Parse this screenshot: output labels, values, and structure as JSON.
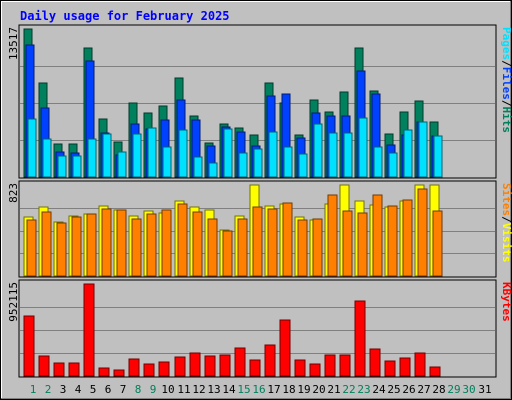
{
  "chart_data": {
    "type": "bar",
    "title": "Daily usage for February 2025",
    "categories": [
      "1",
      "2",
      "3",
      "4",
      "5",
      "6",
      "7",
      "8",
      "9",
      "10",
      "11",
      "12",
      "13",
      "14",
      "15",
      "16",
      "17",
      "18",
      "19",
      "20",
      "21",
      "22",
      "23",
      "24",
      "25",
      "26",
      "27",
      "28",
      "29",
      "30",
      "31"
    ],
    "weekend_days": [
      "1",
      "2",
      "8",
      "9",
      "15",
      "16",
      "22",
      "23",
      "29",
      "30"
    ],
    "colors": {
      "title": "#0000ff",
      "hits": "#00805c",
      "files": "#0040ff",
      "pages": "#00e0ff",
      "visits": "#ffff00",
      "sites": "#ff8000",
      "kbytes": "#ff0000",
      "weekday_label": "#000000",
      "weekend_label": "#00805c"
    },
    "panels": [
      {
        "id": "top",
        "ymax_label": "13517",
        "ymax": 13517,
        "legend": [
          "Pages",
          "Files",
          "Hits"
        ],
        "series": [
          {
            "name": "Hits",
            "values": [
              13500,
              8600,
              3000,
              3000,
              11800,
              5300,
              3200,
              6800,
              5800,
              6500,
              9000,
              5600,
              3100,
              4800,
              4500,
              3800,
              8600,
              6800,
              3800,
              7000,
              5900,
              7800,
              11800,
              7900,
              3900,
              5900,
              6900,
              5000,
              0,
              0,
              0
            ]
          },
          {
            "name": "Files",
            "values": [
              12100,
              6300,
              2300,
              2200,
              10600,
              4000,
              2000,
              4800,
              4400,
              5200,
              7000,
              5200,
              2800,
              4600,
              4100,
              2800,
              7400,
              7600,
              3600,
              5800,
              5600,
              5600,
              9700,
              7600,
              2900,
              3800,
              5000,
              3700,
              0,
              0,
              0
            ]
          },
          {
            "name": "Pages",
            "values": [
              5300,
              3500,
              1900,
              1900,
              3500,
              3900,
              2300,
              3900,
              4500,
              2700,
              4300,
              1800,
              1300,
              4400,
              2200,
              2600,
              4100,
              2700,
              2100,
              4800,
              4000,
              4000,
              5400,
              2700,
              2200,
              4300,
              5000,
              3700,
              0,
              0,
              0
            ]
          }
        ]
      },
      {
        "id": "middle",
        "ymax_label": "823",
        "ymax": 823,
        "legend": [
          "Sites",
          "/",
          "Visits"
        ],
        "series": [
          {
            "name": "Visits",
            "values": [
              530,
              620,
              490,
              540,
              560,
              630,
              600,
              540,
              590,
              570,
              680,
              620,
              600,
              420,
              540,
              820,
              630,
              650,
              530,
              510,
              650,
              820,
              680,
              640,
              620,
              680,
              820,
              820,
              0,
              0,
              0
            ]
          },
          {
            "name": "Sites",
            "values": [
              510,
              580,
              480,
              530,
              560,
              610,
              600,
              520,
              560,
              600,
              650,
              580,
              520,
              410,
              520,
              620,
              610,
              660,
              510,
              520,
              730,
              590,
              570,
              730,
              630,
              690,
              790,
              590,
              0,
              0,
              0
            ]
          }
        ]
      },
      {
        "id": "bottom",
        "ymax_label": "952115",
        "ymax": 952115,
        "legend": [
          "KBytes"
        ],
        "series": [
          {
            "name": "KBytes",
            "values": [
              620000,
              210000,
              130000,
              130000,
              952115,
              80000,
              60000,
              180000,
              120000,
              140000,
              200000,
              240000,
              210000,
              220000,
              290000,
              170000,
              320000,
              580000,
              170000,
              120000,
              220000,
              220000,
              780000,
              280000,
              160000,
              190000,
              240000,
              90000,
              0,
              0,
              0
            ]
          }
        ]
      }
    ]
  }
}
